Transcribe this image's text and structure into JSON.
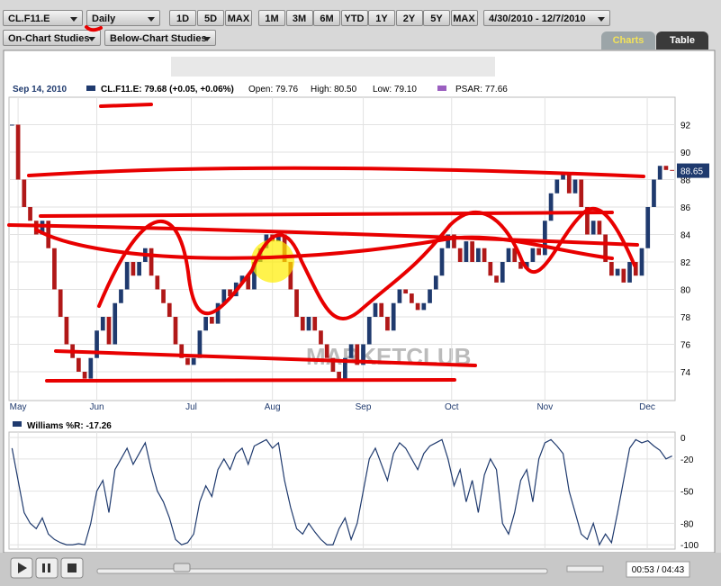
{
  "toolbar": {
    "symbol": "CL.F11.E",
    "interval": "Daily",
    "range_buttons_1": [
      "1D",
      "5D",
      "MAX"
    ],
    "range_buttons_2": [
      "1M",
      "3M",
      "6M",
      "YTD",
      "1Y",
      "2Y",
      "5Y",
      "MAX"
    ],
    "date_range": "4/30/2010 - 12/7/2010",
    "on_chart": "On-Chart Studies",
    "below_chart": "Below-Chart Studies",
    "tabs": [
      "Charts",
      "Table"
    ]
  },
  "info": {
    "date": "Sep 14, 2010",
    "quote": "CL.F11.E: 79.68 (+0.05, +0.06%)",
    "open": "Open: 79.76",
    "high": "High: 80.50",
    "low": "Low: 79.10",
    "psar": "PSAR: 77.66"
  },
  "watermark": "MARKETCLUB",
  "price_chart": {
    "type": "candlestick",
    "closes": [
      92,
      88,
      86,
      85,
      84,
      85,
      83,
      80,
      78,
      76,
      75,
      74,
      73.5,
      75,
      77,
      78,
      76,
      79,
      80,
      82,
      81,
      82,
      83,
      81,
      80,
      79,
      78,
      76,
      75,
      74.5,
      75,
      77,
      78,
      77.5,
      79,
      80,
      79.5,
      80.5,
      81,
      80,
      82,
      83,
      84,
      83.5,
      84,
      82,
      80,
      78,
      77,
      78,
      77,
      76,
      75,
      74,
      73.5,
      75,
      76,
      74.5,
      76,
      78,
      79,
      78,
      77,
      79,
      80,
      79.7,
      79,
      78.5,
      79,
      80,
      81,
      83,
      84,
      83,
      82,
      83.5,
      82,
      83,
      82,
      81,
      80.5,
      82,
      83,
      82,
      81.5,
      82,
      83,
      82.5,
      85,
      87,
      88,
      88.5,
      87,
      88,
      86,
      84,
      85,
      84,
      82,
      81,
      81.5,
      80.5,
      82,
      81,
      83,
      86,
      88,
      89,
      88.7,
      88.65
    ],
    "xticks": [
      {
        "value": 1,
        "label": "May"
      },
      {
        "value": 14,
        "label": "Jun"
      },
      {
        "value": 29.6,
        "label": "Jul"
      },
      {
        "value": 43,
        "label": "Aug"
      },
      {
        "value": 58,
        "label": "Sep"
      },
      {
        "value": 72.6,
        "label": "Oct"
      },
      {
        "value": 88,
        "label": "Nov"
      },
      {
        "value": 104.9,
        "label": "Dec"
      }
    ],
    "ylim": [
      71.9,
      94
    ],
    "yticks": [
      74,
      76,
      78,
      80,
      82,
      84,
      86,
      88,
      90,
      92
    ],
    "last_price": 88.65,
    "up_color": "#1f3a6e",
    "down_color": "#b01818"
  },
  "williams_chart": {
    "type": "line",
    "title": "Williams %R: -17.26",
    "color": "#1f3a6e",
    "values": [
      -10,
      -40,
      -70,
      -80,
      -85,
      -75,
      -90,
      -95,
      -98,
      -100,
      -100,
      -99,
      -100,
      -80,
      -50,
      -40,
      -70,
      -30,
      -20,
      -10,
      -25,
      -15,
      -5,
      -30,
      -50,
      -60,
      -75,
      -95,
      -100,
      -98,
      -90,
      -60,
      -45,
      -55,
      -30,
      -20,
      -30,
      -15,
      -10,
      -25,
      -8,
      -5,
      -2,
      -10,
      -5,
      -40,
      -65,
      -85,
      -90,
      -80,
      -88,
      -95,
      -100,
      -100,
      -85,
      -75,
      -95,
      -80,
      -50,
      -20,
      -10,
      -25,
      -40,
      -15,
      -5,
      -10,
      -20,
      -30,
      -15,
      -8,
      -5,
      -2,
      -20,
      -45,
      -30,
      -60,
      -40,
      -70,
      -35,
      -20,
      -30,
      -80,
      -90,
      -70,
      -40,
      -30,
      -60,
      -20,
      -5,
      -2,
      -8,
      -15,
      -50,
      -70,
      -90,
      -95,
      -80,
      -100,
      -90,
      -98,
      -70,
      -40,
      -10,
      -2,
      -5,
      -3,
      -8,
      -12,
      -20,
      -17.26
    ],
    "ylim": [
      -104,
      5
    ],
    "yticks": [
      0,
      -20,
      -50,
      -80,
      -100
    ]
  },
  "player": {
    "time": "00:53 / 04:43"
  }
}
